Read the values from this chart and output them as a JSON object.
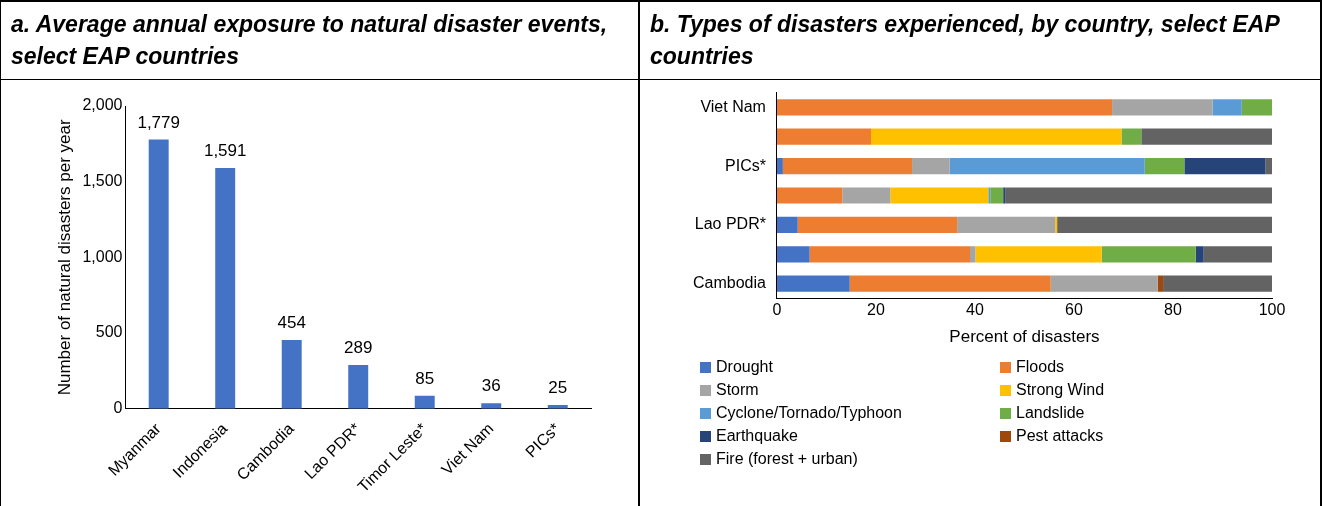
{
  "chart_data": [
    {
      "type": "bar",
      "title": "a. Average annual exposure to natural disaster events, select EAP countries",
      "ylabel": "Number of natural disasters per year",
      "categories": [
        "Myanmar",
        "Indonesia",
        "Cambodia",
        "Lao PDR*",
        "Timor Leste*",
        "Viet Nam",
        "PICs*"
      ],
      "values": [
        1779,
        1591,
        454,
        289,
        85,
        36,
        25
      ],
      "color": "#4472c4",
      "ylim": [
        0,
        2000
      ],
      "yticks": [
        0,
        500,
        {
          "value": 1000,
          "label": "1,000"
        },
        {
          "value": 1500,
          "label": "1,500"
        },
        {
          "value": 2000,
          "label": "2,000"
        }
      ],
      "value_labels": [
        "1,779",
        "1,591",
        "454",
        "289",
        "85",
        "36",
        "25"
      ]
    },
    {
      "type": "bar",
      "title": "b. Types of disasters experienced, by country, select EAP countries",
      "xlabel": "Percent of disasters",
      "orientation": "horizontal",
      "stacked": true,
      "legend": "bottom",
      "categories": [
        "Viet Nam",
        null,
        "PICs*",
        null,
        "Lao PDR*",
        null,
        "Cambodia"
      ],
      "xlim": [
        0,
        100
      ],
      "xticks": [
        0,
        20,
        40,
        60,
        80,
        100
      ],
      "series": [
        {
          "name": "Drought",
          "color": "#4472c4",
          "values": [
            0,
            0,
            1.2,
            0,
            4.2,
            6.6,
            14.7
          ]
        },
        {
          "name": "Floods",
          "color": "#ed7d31",
          "values": [
            67.7,
            19,
            26.1,
            13.2,
            32.2,
            32.4,
            40.6
          ]
        },
        {
          "name": "Storm",
          "color": "#a5a5a5",
          "values": [
            20.3,
            0,
            7.6,
            9.7,
            19.8,
            1.1,
            21.6
          ]
        },
        {
          "name": "Strong Wind",
          "color": "#ffc000",
          "values": [
            0,
            50.6,
            0,
            19.8,
            0.4,
            25.5,
            0
          ]
        },
        {
          "name": "Cyclone/Tornado/Typhoon",
          "color": "#5b9bd5",
          "values": [
            5.9,
            0,
            39.4,
            0.4,
            0,
            0,
            0
          ]
        },
        {
          "name": "Landslide",
          "color": "#70ad47",
          "values": [
            6.1,
            4,
            8,
            2.6,
            0,
            19,
            0
          ]
        },
        {
          "name": "Earthquake",
          "color": "#264478",
          "values": [
            0,
            0,
            16.4,
            0.4,
            0,
            1.6,
            0
          ]
        },
        {
          "name": "Pest attacks",
          "color": "#9e480e",
          "values": [
            0,
            0,
            0,
            0,
            0,
            0,
            1.1
          ]
        },
        {
          "name": "Fire (forest + urban)",
          "color": "#636363",
          "values": [
            0,
            26.4,
            1.3,
            53.9,
            43.4,
            13.8,
            22
          ]
        }
      ]
    }
  ]
}
